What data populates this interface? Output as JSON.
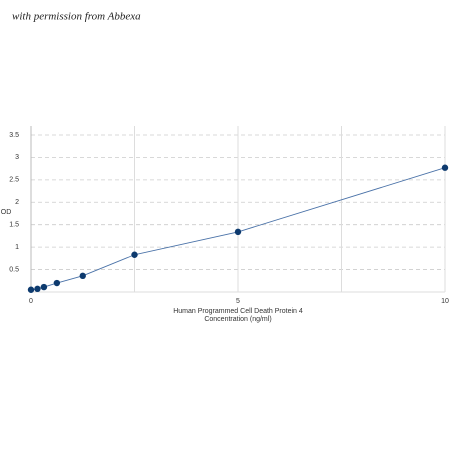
{
  "chart_data": {
    "type": "line",
    "watermark": "with permission from Abbexa",
    "ylabel": "OD",
    "xlabel": [
      "Human Programmed Cell Death Protein 4",
      "Concentration (ng/ml)"
    ],
    "x": [
      0,
      0.156,
      0.312,
      0.625,
      1.25,
      2.5,
      5,
      10
    ],
    "series": [
      {
        "color": "#4a72a8",
        "marker_color": "#0d3a6e",
        "values": [
          0.05,
          0.07,
          0.11,
          0.2,
          0.36,
          0.83,
          1.34,
          2.77
        ]
      }
    ],
    "xlim": [
      0,
      10
    ],
    "xticks": [
      0,
      5,
      10
    ],
    "x_minor_grid": [
      2.5,
      7.5
    ],
    "ylim": [
      0,
      3.7
    ],
    "yticks": [
      0.5,
      1,
      1.5,
      2,
      2.5,
      3,
      3.5
    ],
    "grid": true
  }
}
